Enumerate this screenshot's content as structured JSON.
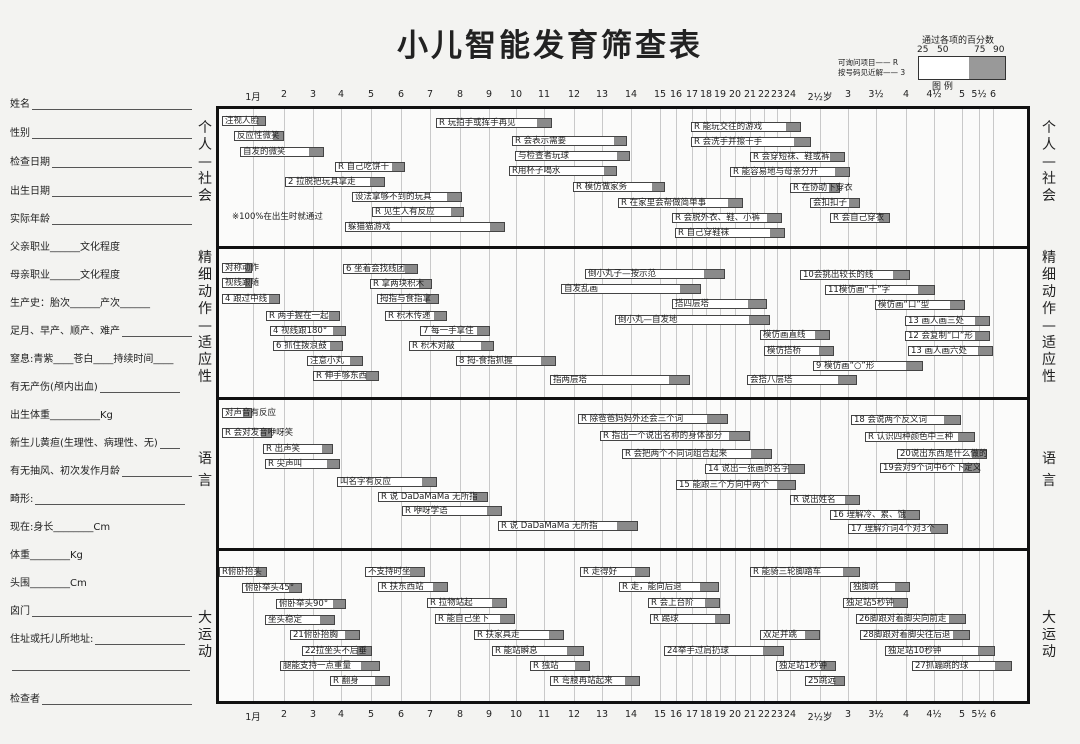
{
  "title": "小儿智能发育筛查表",
  "legend": {
    "header": "通过各项的百分数",
    "pcts": [
      "25",
      "50",
      "75",
      "90"
    ],
    "line1": "可询问项目—— R",
    "line2": "按号码见近解—— 3",
    "label": "图    例"
  },
  "fields": [
    "姓名",
    "性别",
    "检查日期",
    "出生日期",
    "实际年龄",
    "父亲职业______文化程度",
    "母亲职业______文化程度",
    "生产史：胎次______产次______",
    "足月、早产、顺产、难产",
    "窒息:青紫____苍白____持续时间____",
    "有无产伤(颅内出血)",
    "出生体重__________Kg",
    "新生儿黄疸(生理性、病理性、无)",
    "有无抽风、初次发作月龄",
    "畸形:",
    "现在:身长________Cm",
    "体重________Kg",
    "头围________Cm",
    "囟门",
    "住址或托儿所地址:",
    "",
    "检查者"
  ],
  "axis": [
    "1月",
    "2",
    "3",
    "4",
    "5",
    "6",
    "7",
    "8",
    "9",
    "10",
    "11",
    "12",
    "13",
    "14",
    "15",
    "16",
    "17",
    "18",
    "19",
    "20",
    "21",
    "22",
    "23",
    "24",
    "2½岁",
    "3",
    "3½",
    "4",
    "4½",
    "5",
    "5½",
    "6"
  ],
  "sections": [
    {
      "left": "个人—社会",
      "right": "个人—社会"
    },
    {
      "left": "精细动作—适应性",
      "right": "精细动作—适应性"
    },
    {
      "left": "语 言",
      "right": "语 言"
    },
    {
      "left": "大运动",
      "right": "大运动"
    }
  ],
  "note_100": "※100%在出生时就通过",
  "items": {
    "s1": [
      "注视人脸",
      "反应性微笑",
      "自发的微笑",
      "R 自己吃饼干",
      "2 拉脱把玩具拿走",
      "设法拿够不到的玩具",
      "R 见生人有反应",
      "躲猫猫游戏",
      "R 玩拍手或挥手再见",
      "R 会表示需要",
      "与检查者玩球",
      "R用杯子喝水",
      "R 模仿做家务",
      "R 在家里会帮做简单事",
      "R 会脱外衣、鞋、小裤",
      "R 自己穿鞋袜",
      "R 能玩交往的游戏",
      "R 会洗手并擦干手",
      "R 会穿短袜、鞋或裤",
      "R 能容易地与母亲分开",
      "R 在协助下穿衣",
      "会扣扣子",
      "R 会自己穿衣"
    ],
    "s2": [
      "对称动作",
      "视线跟随",
      "4 跟过中线",
      "R 两手握在一起",
      "4 视线跟180°",
      "6 抓住拨浪鼓",
      "注意小丸",
      "R 伸手够东西",
      "6 坐着会找线团",
      "R 拿两块积木",
      "拇指与食指拿",
      "R 积木传递",
      "7 每一手拿住",
      "R 积木对敲",
      "8 拇-食指抓握",
      "倒小丸子—按示范",
      "自发乱画",
      "搭四层塔",
      "倒小丸—自发地",
      "指两层塔",
      "模仿画直线",
      "模仿搭桥",
      "会搭八层塔",
      "10会挑出较长的线",
      "11模仿画“十”字",
      "模仿画“口”型",
      "13 画人画三处",
      "12 会复制“口”形",
      "13 画人画六处",
      "9 模仿画“○”形"
    ],
    "s3": [
      "对声音有反应",
      "R 会对发音咿呀笑",
      "R 出声笑",
      "R 尖声叫",
      "叫名字有反应",
      "R 说 DaDaMaMa 无所指",
      "R 咿呀学语",
      "R 说 DaDaMaMa 无所指",
      "R 除爸爸妈妈外还会三个词",
      "R 指出一个说出名称的身体部分",
      "R 会把两个不同词组合起来",
      "14 说出一张画的名字",
      "15 能跟三个方向中两个",
      "R 说出姓名",
      "16 理解冷、累、饿",
      "17 理解介词4个对3个",
      "18 会说两个反义词",
      "R 认识四种颜色中三种",
      "20说出东西是什么做的",
      "19会对9个词中6个下定义"
    ],
    "s4": [
      "R俯卧抬头",
      "俯卧举头45°",
      "俯卧举头90°",
      "坐头稳定",
      "21俯卧抬胸",
      "22拉坐头不后垂",
      "腿能支持一点重量",
      "R 翻身",
      "不支持时坐",
      "R 扶东西站",
      "R 拉物站起",
      "R 能自己坐下",
      "R 扶家具走",
      "R 能站瞬息",
      "R 独站",
      "R 弯腰再站起来",
      "R 走得好",
      "R 走，能向后退",
      "R 会上台阶",
      "R 踢球",
      "24举手过肩扔球",
      "双足并跳",
      "独足站1秒钟",
      "25跳远",
      "R 能骑三轮脚踏车",
      "独脚跳",
      "独足站5秒钟",
      "26脚跟对着脚尖向前走",
      "28脚跟对着脚尖往后退",
      "独足站10秒钟",
      "27抓蹦跳的球"
    ]
  }
}
